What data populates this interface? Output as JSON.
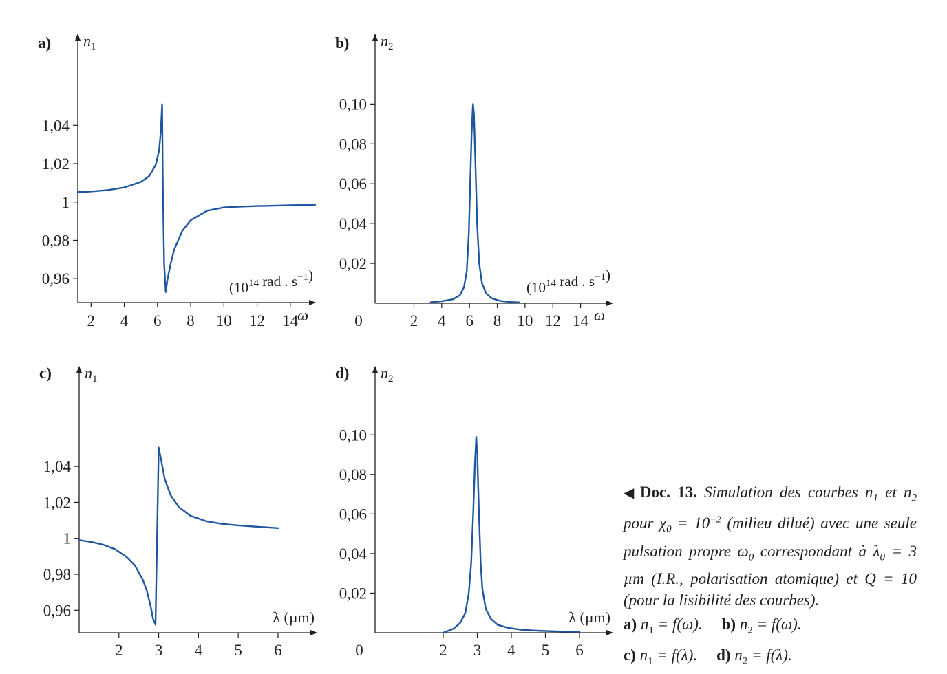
{
  "chart_data": [
    {
      "id": "a",
      "type": "line",
      "panel_label": "a)",
      "ylabel": "n1",
      "xlabel": "ω",
      "unit": "(10^14 rad . s^-1)",
      "xlim": [
        1.2,
        15.5
      ],
      "ylim": [
        0.9475,
        1.0875
      ],
      "xticks": [
        2,
        4,
        6,
        8,
        10,
        12,
        14
      ],
      "xtick_labels": [
        "2",
        "4",
        "6",
        "8",
        "10",
        "12",
        "14"
      ],
      "yticks": [
        0.96,
        0.98,
        1.0,
        1.02,
        1.04
      ],
      "ytick_labels": [
        "0,96",
        "0,98",
        "1",
        "1,02",
        "1,04"
      ],
      "color": "#1f56a0",
      "series": [
        {
          "x": [
            1.2,
            2.0,
            3.0,
            4.0,
            5.0,
            5.5,
            5.9,
            6.1,
            6.2,
            6.28,
            6.32,
            6.4,
            6.5,
            6.6,
            6.8,
            7.0,
            7.5,
            8.0,
            9.0,
            10.0,
            11.0,
            12.0,
            13.0,
            14.0,
            15.5
          ],
          "y": [
            1.0052,
            1.0055,
            1.0062,
            1.0076,
            1.0105,
            1.0135,
            1.0195,
            1.027,
            1.037,
            1.051,
            1.012,
            0.968,
            0.953,
            0.9595,
            0.968,
            0.975,
            0.985,
            0.9905,
            0.9955,
            0.9972,
            0.9976,
            0.9979,
            0.9981,
            0.9983,
            0.9986
          ]
        }
      ]
    },
    {
      "id": "b",
      "type": "line",
      "panel_label": "b)",
      "ylabel": "n2",
      "xlabel": "ω",
      "unit": "(10^14 rad . s^-1)",
      "origin_label": "0",
      "xlim": [
        -0.8,
        16.3
      ],
      "ylim": [
        0.0,
        0.135
      ],
      "xticks": [
        2,
        4,
        6,
        8,
        10,
        12,
        14
      ],
      "xtick_labels": [
        "2",
        "4",
        "6",
        "8",
        "10",
        "12",
        "14"
      ],
      "yticks": [
        0.02,
        0.04,
        0.06,
        0.08,
        0.1
      ],
      "ytick_labels": [
        "0,02",
        "0,04",
        "0,06",
        "0,08",
        "0,10"
      ],
      "color": "#1f56a0",
      "series": [
        {
          "x": [
            3.2,
            4.0,
            4.8,
            5.3,
            5.6,
            5.8,
            5.95,
            6.05,
            6.15,
            6.25,
            6.32,
            6.45,
            6.55,
            6.7,
            6.9,
            7.2,
            7.6,
            8.2,
            9.0,
            9.6
          ],
          "y": [
            0.0005,
            0.001,
            0.002,
            0.004,
            0.008,
            0.016,
            0.035,
            0.06,
            0.085,
            0.1,
            0.095,
            0.065,
            0.04,
            0.02,
            0.01,
            0.005,
            0.0025,
            0.0012,
            0.0006,
            0.0004
          ]
        }
      ]
    },
    {
      "id": "c",
      "type": "line",
      "panel_label": "c)",
      "ylabel": "n1",
      "xlabel": "λ (µm)",
      "xlim": [
        1.0,
        6.97
      ],
      "ylim": [
        0.9475,
        1.0955
      ],
      "xticks": [
        2,
        3,
        4,
        5,
        6
      ],
      "xtick_labels": [
        "2",
        "3",
        "4",
        "5",
        "6"
      ],
      "yticks": [
        0.96,
        0.98,
        1.0,
        1.02,
        1.04
      ],
      "ytick_labels": [
        "0,96",
        "0,98",
        "1",
        "1,02",
        "1,04"
      ],
      "color": "#1f56a0",
      "series": [
        {
          "x": [
            1.0,
            1.3,
            1.6,
            1.9,
            2.2,
            2.4,
            2.6,
            2.7,
            2.8,
            2.86,
            2.92,
            3.0,
            3.05,
            3.15,
            3.3,
            3.5,
            3.8,
            4.2,
            4.6,
            5.0,
            5.5,
            6.0
          ],
          "y": [
            0.999,
            0.998,
            0.9965,
            0.994,
            0.9895,
            0.985,
            0.977,
            0.971,
            0.962,
            0.955,
            0.952,
            1.0505,
            1.045,
            1.033,
            1.024,
            1.0175,
            1.0125,
            1.0095,
            1.008,
            1.0072,
            1.0064,
            1.0057
          ]
        }
      ]
    },
    {
      "id": "d",
      "type": "line",
      "panel_label": "d)",
      "ylabel": "n2",
      "xlabel": "λ (µm)",
      "origin_label": "0",
      "xlim": [
        0.0,
        6.97
      ],
      "ylim": [
        0.0,
        0.1345
      ],
      "xticks": [
        2,
        3,
        4,
        5,
        6
      ],
      "xtick_labels": [
        "2",
        "3",
        "4",
        "5",
        "6"
      ],
      "yticks": [
        0.02,
        0.04,
        0.06,
        0.08,
        0.1
      ],
      "ytick_labels": [
        "0,02",
        "0,04",
        "0,06",
        "0,08",
        "0,10"
      ],
      "color": "#1f56a0",
      "series": [
        {
          "x": [
            2.0,
            2.3,
            2.5,
            2.65,
            2.75,
            2.82,
            2.88,
            2.93,
            2.97,
            3.0,
            3.05,
            3.1,
            3.15,
            3.25,
            3.4,
            3.6,
            3.9,
            4.3,
            4.8,
            5.5,
            6.0
          ],
          "y": [
            0.0,
            0.002,
            0.005,
            0.01,
            0.02,
            0.035,
            0.06,
            0.085,
            0.099,
            0.09,
            0.06,
            0.035,
            0.022,
            0.012,
            0.007,
            0.004,
            0.0025,
            0.0015,
            0.001,
            0.0006,
            0.0005
          ]
        }
      ]
    }
  ],
  "caption": {
    "doc_ref": "Doc. 13.",
    "text_1": "Simulation des courbes n",
    "sub_1": "1",
    "text_2": " et n",
    "sub_2": "2",
    "text_3": " pour χ",
    "sub_3": "0",
    "text_4": " = 10",
    "sup_4": "−2",
    "text_5": " (milieu dilué) avec une seule pulsation propre ω",
    "sub_5": "0",
    "text_6": " correspondant à λ",
    "sub_6": "0",
    "text_7": " = 3 µm (I.R., polarisation atomique) et Q = 10 (pour la lisibilité des courbes).",
    "legend": [
      {
        "tag": "a)",
        "lhs": "n",
        "sub": "1",
        "rhs": " = f(ω)."
      },
      {
        "tag": "b)",
        "lhs": "n",
        "sub": "2",
        "rhs": " = f(ω)."
      },
      {
        "tag": "c)",
        "lhs": "n",
        "sub": "1",
        "rhs": " = f(λ)."
      },
      {
        "tag": "d)",
        "lhs": "n",
        "sub": "2",
        "rhs": " = f(λ)."
      }
    ]
  }
}
